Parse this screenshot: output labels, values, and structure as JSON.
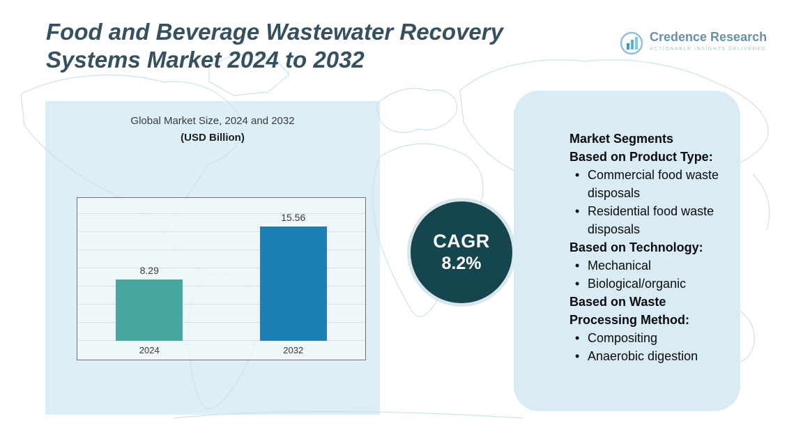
{
  "header": {
    "title_line1": "Food and Beverage Wastewater Recovery",
    "title_line2": "Systems Market 2024 to 2032"
  },
  "logo": {
    "name": "Credence Research",
    "tagline": "Actionable Insights Delivered"
  },
  "chart_data": {
    "type": "bar",
    "title": "Global Market Size, 2024 and 2032",
    "subtitle": "(USD Billion)",
    "categories": [
      "2024",
      "2032"
    ],
    "values": [
      8.29,
      15.56
    ],
    "value_labels": [
      "8.29",
      "15.56"
    ],
    "bar_colors": [
      "#47a8a2",
      "#1d80b4"
    ],
    "unit": "USD Billion",
    "xlabel": "",
    "ylabel": "",
    "ylim": [
      0,
      18
    ],
    "grid": true,
    "legend": false
  },
  "cagr": {
    "label": "CAGR",
    "value": "8.2%"
  },
  "segments": {
    "heading": "Market Segments",
    "groups": [
      {
        "title": "Based on Product Type:",
        "items": [
          "Commercial food waste disposals",
          "Residential food waste disposals"
        ]
      },
      {
        "title": "Based on Technology:",
        "items": [
          "Mechanical",
          "Biological/organic"
        ]
      },
      {
        "title": "Based on Waste Processing Method:",
        "items": [
          "Compositing",
          "Anaerobic digestion"
        ]
      }
    ]
  }
}
